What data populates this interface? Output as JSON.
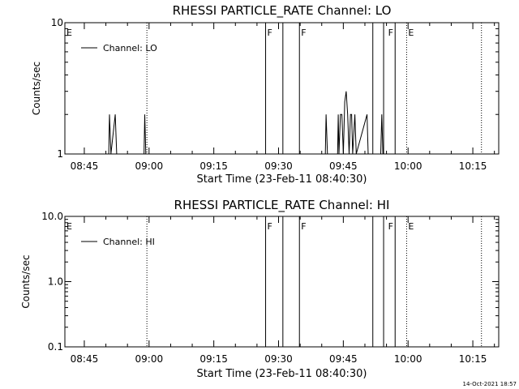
{
  "chart_data": [
    {
      "type": "line",
      "title": "RHESSI PARTICLE_RATE Channel: LO",
      "xlabel": "Start Time (23-Feb-11 08:40:30)",
      "ylabel": "Counts/sec",
      "xlim": [
        "08:40:30",
        "10:21:00"
      ],
      "ylim": [
        1,
        10
      ],
      "yscale": "log",
      "x_tick_labels": [
        "08:45",
        "09:00",
        "09:15",
        "09:30",
        "09:45",
        "10:00",
        "10:15"
      ],
      "y_tick_labels": [
        "1",
        "10"
      ],
      "legend": {
        "position": "top-left",
        "entries": [
          "Channel: LO"
        ]
      },
      "series": [
        {
          "name": "Channel: LO",
          "points": [
            [
              "08:50:40",
              1
            ],
            [
              "08:50:50",
              2
            ],
            [
              "08:51:10",
              1
            ],
            [
              "08:52:10",
              2
            ],
            [
              "08:52:30",
              1
            ],
            [
              "08:58:50",
              1
            ],
            [
              "08:59:00",
              2
            ],
            [
              "08:59:15",
              1
            ],
            [
              "08:59:30",
              1
            ],
            [
              "09:40:50",
              1
            ],
            [
              "09:41:00",
              2
            ],
            [
              "09:41:20",
              1
            ],
            [
              "09:43:40",
              1
            ],
            [
              "09:43:50",
              2
            ],
            [
              "09:44:00",
              1
            ],
            [
              "09:44:20",
              2
            ],
            [
              "09:44:40",
              2
            ],
            [
              "09:45:00",
              1
            ],
            [
              "09:45:20",
              2.5
            ],
            [
              "09:45:40",
              3
            ],
            [
              "09:46:00",
              2
            ],
            [
              "09:46:20",
              1
            ],
            [
              "09:46:40",
              2
            ],
            [
              "09:46:55",
              2
            ],
            [
              "09:47:10",
              1
            ],
            [
              "09:47:40",
              2
            ],
            [
              "09:48:00",
              1
            ],
            [
              "09:50:30",
              2
            ],
            [
              "09:50:45",
              1
            ],
            [
              "09:53:40",
              1
            ],
            [
              "09:53:55",
              2
            ],
            [
              "09:54:10",
              1
            ]
          ]
        }
      ],
      "flags": [
        {
          "label": "E",
          "time": "08:40:30"
        },
        {
          "label": "F",
          "time": "09:27:00"
        },
        {
          "label": "F",
          "time": "09:34:50"
        },
        {
          "label": "F",
          "time": "09:55:00"
        },
        {
          "label": "E",
          "time": "09:59:40"
        }
      ],
      "flag_lines": [
        "09:27:00",
        "09:31:00",
        "09:34:50",
        "09:51:50",
        "09:54:20",
        "09:57:00"
      ],
      "dotted_lines": [
        "08:59:30",
        "09:59:40",
        "10:17:00"
      ]
    },
    {
      "type": "line",
      "title": "RHESSI PARTICLE_RATE Channel: HI",
      "xlabel": "Start Time (23-Feb-11 08:40:30)",
      "ylabel": "Counts/sec",
      "xlim": [
        "08:40:30",
        "10:21:00"
      ],
      "ylim": [
        0.1,
        10
      ],
      "yscale": "log",
      "x_tick_labels": [
        "08:45",
        "09:00",
        "09:15",
        "09:30",
        "09:45",
        "10:00",
        "10:15"
      ],
      "y_tick_labels": [
        "0.1",
        "1.0",
        "10.0"
      ],
      "legend": {
        "position": "top-left",
        "entries": [
          "Channel: HI"
        ]
      },
      "series": [
        {
          "name": "Channel: HI",
          "points": []
        }
      ],
      "flags": [
        {
          "label": "E",
          "time": "08:40:30"
        },
        {
          "label": "F",
          "time": "09:27:00"
        },
        {
          "label": "F",
          "time": "09:34:50"
        },
        {
          "label": "F",
          "time": "09:55:00"
        },
        {
          "label": "E",
          "time": "09:59:40"
        }
      ],
      "flag_lines": [
        "09:27:00",
        "09:31:00",
        "09:34:50",
        "09:51:50",
        "09:54:20",
        "09:57:00"
      ],
      "dotted_lines": [
        "08:59:30",
        "09:59:40",
        "10:17:00"
      ]
    }
  ],
  "footer": {
    "timestamp": "14-Oct-2021 18:57"
  }
}
